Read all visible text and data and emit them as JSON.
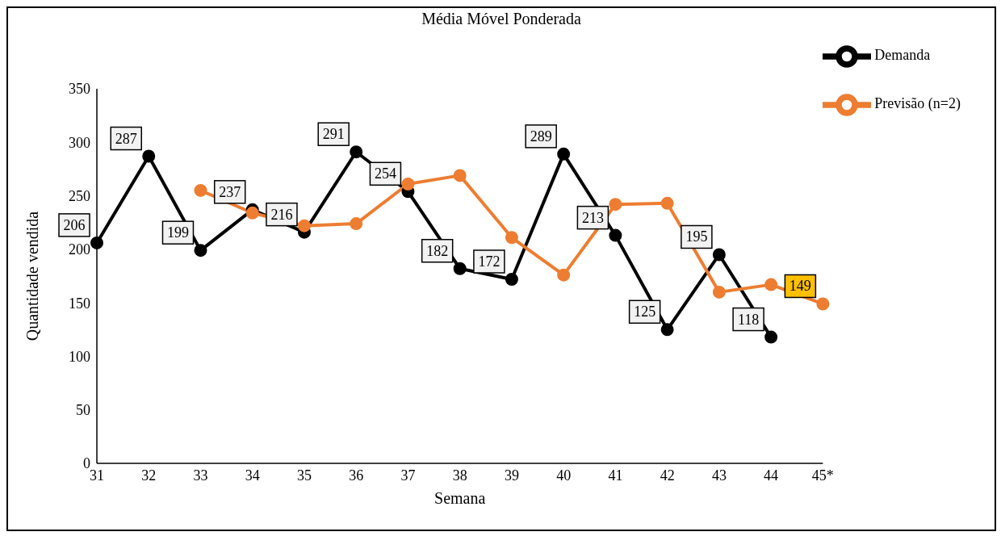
{
  "chart_data": {
    "type": "line",
    "title": "Média Móvel Ponderada",
    "xlabel": "Semana",
    "ylabel": "Quantidade vendida",
    "categories": [
      "31",
      "32",
      "33",
      "34",
      "35",
      "36",
      "37",
      "38",
      "39",
      "40",
      "41",
      "42",
      "43",
      "44",
      "45*"
    ],
    "series": [
      {
        "name": "Demanda",
        "color": "#000000",
        "values": [
          206,
          287,
          199,
          237,
          216,
          291,
          254,
          182,
          172,
          289,
          213,
          125,
          195,
          118,
          null
        ],
        "value_labels": [
          "206",
          "287",
          "199",
          "237",
          "216",
          "291",
          "254",
          "182",
          "172",
          "289",
          "213",
          "125",
          "195",
          "118",
          null
        ]
      },
      {
        "name": "Previsão (n=2)",
        "color": "#ed7d31",
        "values": [
          null,
          null,
          255,
          234,
          222,
          224,
          261,
          269,
          211,
          176,
          242,
          243,
          160,
          167,
          149
        ],
        "value_labels": [
          null,
          null,
          null,
          null,
          null,
          null,
          null,
          null,
          null,
          null,
          null,
          null,
          null,
          null,
          "149"
        ]
      }
    ],
    "ylim": [
      0,
      350
    ],
    "yticks": [
      0,
      50,
      100,
      150,
      200,
      250,
      300,
      350
    ],
    "grid": false,
    "legend": "top right",
    "marker": "circle",
    "line_style": "solid"
  }
}
